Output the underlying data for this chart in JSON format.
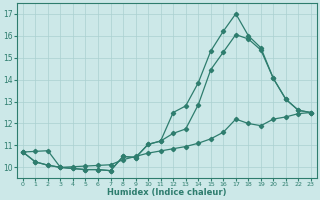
{
  "xlabel": "Humidex (Indice chaleur)",
  "background_color": "#cce8e8",
  "grid_color": "#aad0d0",
  "line_color": "#2e7d6e",
  "xlim": [
    -0.5,
    23.5
  ],
  "ylim": [
    9.5,
    17.5
  ],
  "xticks": [
    0,
    1,
    2,
    3,
    4,
    5,
    6,
    7,
    8,
    9,
    10,
    11,
    12,
    13,
    14,
    15,
    16,
    17,
    18,
    19,
    20,
    21,
    22,
    23
  ],
  "yticks": [
    10,
    11,
    12,
    13,
    14,
    15,
    16,
    17
  ],
  "line1_x": [
    0,
    1,
    2,
    3,
    4,
    5,
    6,
    7,
    8,
    9,
    10,
    11,
    12,
    13,
    14,
    15,
    16,
    17,
    18,
    19,
    20,
    21,
    22,
    23
  ],
  "line1_y": [
    10.7,
    10.25,
    10.1,
    10.0,
    9.95,
    9.9,
    9.9,
    9.85,
    10.5,
    10.45,
    11.05,
    11.2,
    12.5,
    12.8,
    13.85,
    15.3,
    16.2,
    17.0,
    16.0,
    15.45,
    14.05,
    13.1,
    12.6,
    12.5
  ],
  "line2_x": [
    0,
    1,
    2,
    3,
    4,
    5,
    6,
    7,
    8,
    9,
    10,
    11,
    12,
    13,
    14,
    15,
    16,
    17,
    18,
    19,
    20,
    21,
    22,
    23
  ],
  "line2_y": [
    10.7,
    10.25,
    10.1,
    10.0,
    9.95,
    9.9,
    9.9,
    9.85,
    10.5,
    10.45,
    11.05,
    11.2,
    11.55,
    11.75,
    12.85,
    14.45,
    15.25,
    16.05,
    15.85,
    15.35,
    14.05,
    13.1,
    12.6,
    12.5
  ],
  "line3_x": [
    0,
    1,
    2,
    3,
    4,
    5,
    6,
    7,
    8,
    9,
    10,
    11,
    12,
    13,
    14,
    15,
    16,
    17,
    18,
    19,
    20,
    21,
    22,
    23
  ],
  "line3_y": [
    10.7,
    10.73,
    10.76,
    10.0,
    10.03,
    10.06,
    10.09,
    10.12,
    10.35,
    10.5,
    10.65,
    10.75,
    10.85,
    10.95,
    11.1,
    11.3,
    11.6,
    12.2,
    12.0,
    11.9,
    12.2,
    12.3,
    12.45,
    12.5
  ]
}
